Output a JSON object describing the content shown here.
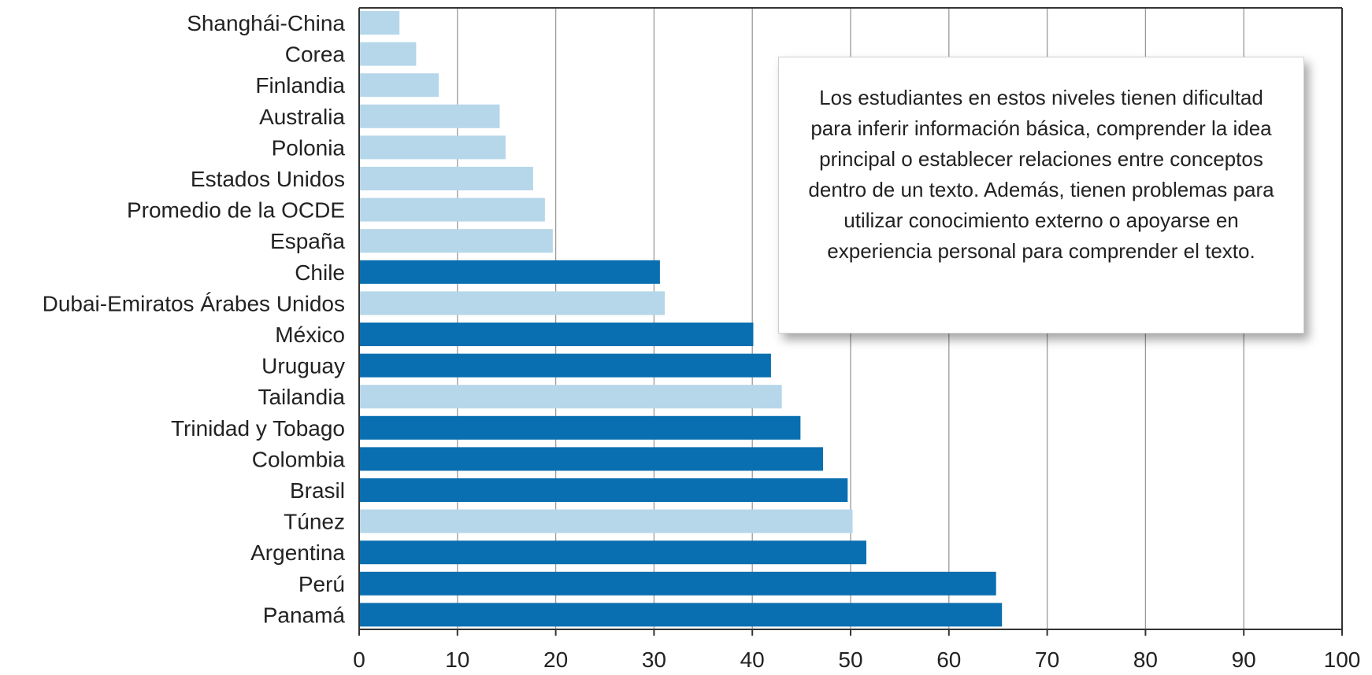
{
  "chart_data": {
    "type": "bar",
    "orientation": "horizontal",
    "categories": [
      "Shanghái-China",
      "Corea",
      "Finlandia",
      "Australia",
      "Polonia",
      "Estados Unidos",
      "Promedio de la OCDE",
      "España",
      "Chile",
      "Dubai-Emiratos Árabes Unidos",
      "México",
      "Uruguay",
      "Tailandia",
      "Trinidad y Tobago",
      "Colombia",
      "Brasil",
      "Túnez",
      "Argentina",
      "Perú",
      "Panamá"
    ],
    "values": [
      4.1,
      5.8,
      8.1,
      14.3,
      14.9,
      17.7,
      18.9,
      19.7,
      30.6,
      31.1,
      40.1,
      41.9,
      43.0,
      44.9,
      47.2,
      49.7,
      50.2,
      51.6,
      64.8,
      65.4
    ],
    "highlighted": [
      false,
      false,
      false,
      false,
      false,
      false,
      false,
      false,
      true,
      false,
      true,
      true,
      false,
      true,
      true,
      true,
      false,
      true,
      true,
      true
    ],
    "colors": {
      "highlight": "#0a6fb0",
      "other": "#b6d7ea",
      "grid": "#9a9a9a",
      "axis": "#333333"
    },
    "xlim": [
      0,
      100
    ],
    "xticks": [
      0,
      10,
      20,
      30,
      40,
      50,
      60,
      70,
      80,
      90,
      100
    ],
    "grid": true,
    "title": "",
    "xlabel": "",
    "ylabel": ""
  },
  "callout": {
    "text": "Los estudiantes en estos niveles tienen dificultad para inferir información básica, comprender la idea principal o establecer relaciones entre conceptos dentro de un texto. Además, tienen problemas para utilizar conocimiento externo o apoyarse en experiencia personal para comprender el texto."
  }
}
